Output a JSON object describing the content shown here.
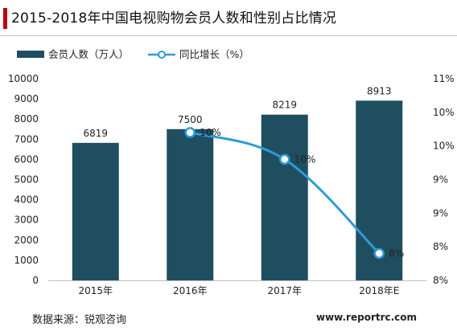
{
  "page": {
    "title": "2015-2018年中国电视购物会员人数和性别占比情况",
    "source": "数据来源：锐观咨询",
    "watermark": "www.reportrc.com"
  },
  "chart_data": {
    "type": "bar",
    "title": "2015-2018年中国电视购物会员人数和性别占比情况",
    "categories": [
      "2015年",
      "2016年",
      "2017年",
      "2018年E"
    ],
    "series": [
      {
        "name": "会员人数（万人）",
        "type": "bar",
        "axis": "left",
        "values": [
          6819,
          7500,
          8219,
          8913
        ],
        "labels": [
          "6819",
          "7500",
          "8219",
          "8913"
        ],
        "color": "#1f4e61"
      },
      {
        "name": "同比增长（%）",
        "type": "line",
        "axis": "right",
        "points": [
          {
            "category": "2016年",
            "value": 10.2,
            "label": "10%"
          },
          {
            "category": "2017年",
            "value": 9.8,
            "label": "10%"
          },
          {
            "category": "2018年E",
            "value": 8.4,
            "label": "8%"
          }
        ],
        "color": "#2e9bd6"
      }
    ],
    "left_axis": {
      "min": 0,
      "max": 10000,
      "ticks": [
        0,
        1000,
        2000,
        3000,
        4000,
        5000,
        6000,
        7000,
        8000,
        9000,
        10000
      ],
      "tick_labels": [
        "0",
        "1000",
        "2000",
        "3000",
        "4000",
        "5000",
        "6000",
        "7000",
        "8000",
        "9000",
        "10000"
      ]
    },
    "right_axis": {
      "min": 8,
      "max": 11,
      "ticks": [
        8,
        8.5,
        9,
        9.5,
        10,
        10.5,
        11
      ],
      "tick_labels": [
        "8%",
        "8%",
        "9%",
        "9%",
        "10%",
        "10%",
        "11%"
      ]
    },
    "legend": {
      "position": "top-left"
    },
    "grid": false
  }
}
